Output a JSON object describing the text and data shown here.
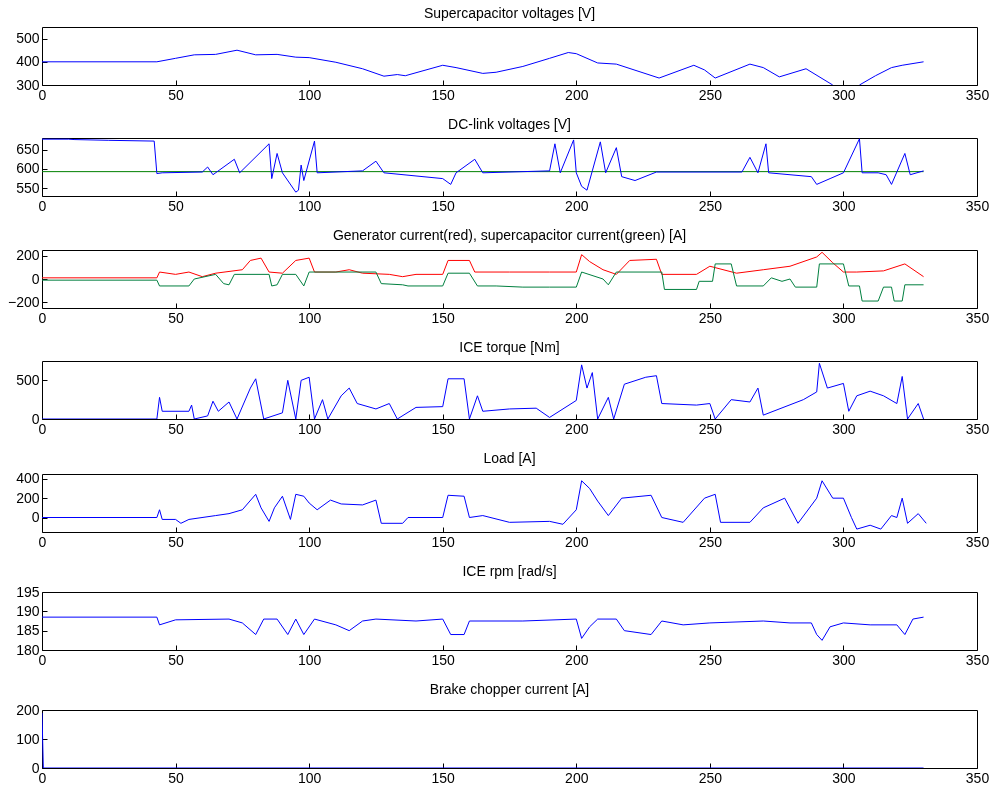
{
  "chart_data": [
    {
      "type": "line",
      "title": "Supercapacitor voltages [V]",
      "xlim": [
        0,
        350
      ],
      "xticks": [
        0,
        50,
        100,
        150,
        200,
        250,
        300,
        350
      ],
      "ylim": [
        300,
        550
      ],
      "yticks": [
        300,
        400,
        500
      ],
      "series": [
        {
          "color": "#0000ff",
          "x": [
            0,
            43,
            50,
            57,
            65,
            73,
            80,
            88,
            95,
            100,
            110,
            120,
            128,
            133,
            136,
            150,
            155,
            165,
            170,
            180,
            190,
            197,
            200,
            208,
            215,
            231,
            244,
            248,
            252,
            265,
            270,
            276,
            286,
            296,
            297,
            305,
            306,
            312,
            318,
            322,
            330
          ],
          "values": [
            400,
            400,
            415,
            430,
            432,
            450,
            430,
            432,
            420,
            418,
            398,
            370,
            338,
            345,
            340,
            385,
            375,
            350,
            355,
            380,
            415,
            440,
            435,
            395,
            390,
            330,
            385,
            365,
            330,
            390,
            375,
            335,
            370,
            300,
            null,
            null,
            300,
            340,
            375,
            385,
            400
          ]
        }
      ]
    },
    {
      "type": "line",
      "title": "DC-link voltages [V]",
      "xlim": [
        0,
        350
      ],
      "xticks": [
        0,
        50,
        100,
        150,
        200,
        250,
        300,
        350
      ],
      "ylim": [
        530,
        680
      ],
      "yticks": [
        550,
        600,
        650
      ],
      "series": [
        {
          "color": "#008000",
          "x": [
            0,
            330
          ],
          "values": [
            593,
            593
          ]
        },
        {
          "color": "#0000ff",
          "x": [
            0,
            10,
            12,
            25,
            42,
            43,
            45,
            60,
            62,
            64,
            72,
            74,
            85,
            86,
            88,
            90,
            95,
            96,
            97,
            98,
            102,
            103,
            120,
            125,
            128,
            150,
            153,
            155,
            162,
            165,
            190,
            192,
            194,
            199,
            200,
            202,
            204,
            206,
            209,
            211,
            215,
            217,
            222,
            230,
            262,
            265,
            268,
            271,
            272,
            288,
            290,
            295,
            300,
            306,
            307,
            313,
            316,
            318,
            323,
            325,
            330
          ],
          "values": [
            677,
            677,
            676,
            674,
            672,
            588,
            590,
            592,
            605,
            585,
            625,
            590,
            665,
            575,
            640,
            590,
            540,
            545,
            610,
            570,
            672,
            590,
            595,
            620,
            590,
            575,
            560,
            590,
            625,
            590,
            595,
            665,
            590,
            675,
            590,
            555,
            545,
            595,
            670,
            590,
            655,
            580,
            570,
            592,
            592,
            630,
            590,
            665,
            590,
            580,
            560,
            575,
            590,
            678,
            590,
            590,
            585,
            560,
            640,
            585,
            595
          ]
        }
      ]
    },
    {
      "type": "line",
      "title": "Generator current(red), supercapacitor current(green) [A]",
      "xlim": [
        0,
        350
      ],
      "xticks": [
        0,
        50,
        100,
        150,
        200,
        250,
        300,
        350
      ],
      "ylim": [
        -250,
        250
      ],
      "yticks": [
        -200,
        0,
        200
      ],
      "series": [
        {
          "color": "#ff0000",
          "x": [
            0,
            43,
            44,
            50,
            55,
            60,
            65,
            75,
            78,
            82,
            85,
            90,
            95,
            100,
            102,
            110,
            115,
            120,
            130,
            135,
            140,
            150,
            152,
            160,
            162,
            175,
            190,
            200,
            202,
            205,
            210,
            215,
            220,
            230,
            232,
            245,
            250,
            260,
            270,
            280,
            290,
            292,
            296,
            300,
            305,
            315,
            323,
            330
          ],
          "values": [
            10,
            10,
            60,
            40,
            60,
            20,
            50,
            80,
            160,
            180,
            60,
            50,
            160,
            180,
            60,
            60,
            80,
            50,
            40,
            20,
            40,
            40,
            160,
            160,
            60,
            60,
            60,
            60,
            210,
            150,
            80,
            40,
            160,
            170,
            40,
            40,
            110,
            50,
            80,
            110,
            190,
            230,
            140,
            60,
            60,
            70,
            130,
            20
          ]
        },
        {
          "color": "#007f3f",
          "x": [
            0,
            43,
            44,
            55,
            57,
            65,
            68,
            70,
            72,
            85,
            86,
            88,
            90,
            95,
            98,
            100,
            125,
            127,
            135,
            137,
            150,
            152,
            160,
            163,
            170,
            180,
            190,
            200,
            202,
            210,
            212,
            215,
            232,
            233,
            245,
            246,
            251,
            252,
            258,
            260,
            270,
            273,
            277,
            280,
            282,
            290,
            291,
            300,
            302,
            306,
            307,
            313,
            315,
            318,
            319,
            322,
            323,
            330
          ],
          "values": [
            -10,
            -10,
            -60,
            -60,
            0,
            40,
            -40,
            -50,
            40,
            40,
            -60,
            -50,
            40,
            40,
            -60,
            60,
            60,
            -40,
            -50,
            -60,
            -60,
            50,
            50,
            -60,
            -60,
            -70,
            -70,
            -70,
            60,
            0,
            -50,
            60,
            60,
            -90,
            -90,
            -20,
            -20,
            130,
            130,
            -60,
            -60,
            10,
            -20,
            0,
            -70,
            -70,
            130,
            130,
            -60,
            -60,
            -190,
            -190,
            -70,
            -70,
            -190,
            -190,
            -50,
            -50
          ]
        }
      ]
    },
    {
      "type": "line",
      "title": "ICE torque [Nm]",
      "xlim": [
        0,
        350
      ],
      "xticks": [
        0,
        50,
        100,
        150,
        200,
        250,
        300,
        350
      ],
      "ylim": [
        0,
        750
      ],
      "yticks": [
        0,
        500
      ],
      "series": [
        {
          "color": "#0000ff",
          "x": [
            0,
            43,
            44,
            45,
            55,
            56,
            57,
            62,
            64,
            66,
            70,
            73,
            78,
            80,
            83,
            90,
            92,
            95,
            97,
            100,
            102,
            105,
            107,
            112,
            115,
            118,
            125,
            130,
            133,
            140,
            150,
            152,
            158,
            160,
            163,
            165,
            175,
            185,
            190,
            200,
            202,
            204,
            206,
            208,
            212,
            214,
            218,
            226,
            230,
            232,
            245,
            250,
            252,
            258,
            265,
            268,
            270,
            285,
            290,
            291,
            294,
            300,
            302,
            305,
            310,
            315,
            320,
            322,
            324,
            328,
            330
          ],
          "values": [
            0,
            0,
            280,
            100,
            100,
            180,
            0,
            40,
            230,
            100,
            220,
            0,
            400,
            520,
            0,
            80,
            500,
            0,
            500,
            540,
            0,
            250,
            0,
            300,
            400,
            200,
            130,
            200,
            0,
            150,
            160,
            520,
            520,
            0,
            300,
            100,
            130,
            140,
            20,
            240,
            700,
            400,
            600,
            0,
            280,
            0,
            450,
            540,
            560,
            200,
            180,
            200,
            0,
            250,
            220,
            400,
            50,
            250,
            350,
            720,
            400,
            460,
            100,
            300,
            360,
            300,
            200,
            550,
            0,
            200,
            0
          ]
        }
      ]
    },
    {
      "type": "line",
      "title": "Load [A]",
      "xlim": [
        0,
        350
      ],
      "xticks": [
        0,
        50,
        100,
        150,
        200,
        250,
        300,
        350
      ],
      "ylim": [
        -150,
        450
      ],
      "yticks": [
        0,
        200,
        400
      ],
      "series": [
        {
          "color": "#0000ff",
          "x": [
            0,
            43,
            44,
            45,
            50,
            52,
            55,
            65,
            70,
            75,
            80,
            82,
            85,
            87,
            90,
            93,
            95,
            98,
            100,
            103,
            108,
            112,
            120,
            125,
            127,
            135,
            137,
            150,
            152,
            158,
            160,
            165,
            175,
            190,
            195,
            200,
            202,
            205,
            208,
            212,
            217,
            228,
            232,
            240,
            248,
            252,
            254,
            265,
            270,
            278,
            283,
            290,
            292,
            296,
            300,
            303,
            305,
            310,
            314,
            318,
            320,
            322,
            324,
            328,
            331
          ],
          "values": [
            0,
            0,
            80,
            -20,
            -20,
            -60,
            -20,
            20,
            40,
            80,
            240,
            100,
            -40,
            100,
            220,
            -20,
            240,
            220,
            150,
            80,
            180,
            140,
            130,
            180,
            -60,
            -60,
            0,
            0,
            230,
            220,
            0,
            20,
            -50,
            -40,
            -70,
            80,
            380,
            300,
            170,
            20,
            200,
            230,
            0,
            -50,
            200,
            240,
            -50,
            -50,
            100,
            200,
            -60,
            200,
            380,
            200,
            200,
            0,
            -120,
            -80,
            -120,
            20,
            0,
            200,
            -60,
            40,
            -60
          ]
        }
      ]
    },
    {
      "type": "line",
      "title": "ICE rpm [rad/s]",
      "xlim": [
        0,
        350
      ],
      "xticks": [
        0,
        50,
        100,
        150,
        200,
        250,
        300,
        350
      ],
      "ylim": [
        180,
        195
      ],
      "yticks": [
        180,
        185,
        190,
        195
      ],
      "series": [
        {
          "color": "#0000ff",
          "x": [
            0,
            43,
            44,
            50,
            70,
            75,
            80,
            83,
            88,
            92,
            95,
            98,
            102,
            110,
            115,
            120,
            125,
            140,
            150,
            153,
            158,
            160,
            180,
            200,
            202,
            205,
            208,
            215,
            218,
            228,
            232,
            240,
            250,
            270,
            280,
            288,
            290,
            292,
            295,
            300,
            310,
            320,
            323,
            326,
            330
          ],
          "values": [
            188.5,
            188.5,
            186.5,
            187.8,
            188,
            187,
            184,
            188,
            188,
            184,
            188,
            184,
            188,
            186.5,
            185,
            187.5,
            188,
            187.5,
            188,
            184,
            184,
            187.5,
            187.5,
            188,
            183,
            186,
            188,
            188,
            185,
            184,
            187.5,
            186.5,
            187,
            187.5,
            187,
            187,
            184,
            182.5,
            186,
            187,
            186.5,
            186.5,
            184,
            188,
            188.5
          ]
        }
      ]
    },
    {
      "type": "line",
      "title": "Brake chopper current [A]",
      "xlim": [
        0,
        350
      ],
      "xticks": [
        0,
        50,
        100,
        150,
        200,
        250,
        300,
        350
      ],
      "ylim": [
        0,
        200
      ],
      "yticks": [
        0,
        100,
        200
      ],
      "series": [
        {
          "color": "#0000ff",
          "x": [
            0,
            0.5,
            330
          ],
          "values": [
            190,
            0,
            0
          ]
        }
      ]
    }
  ]
}
